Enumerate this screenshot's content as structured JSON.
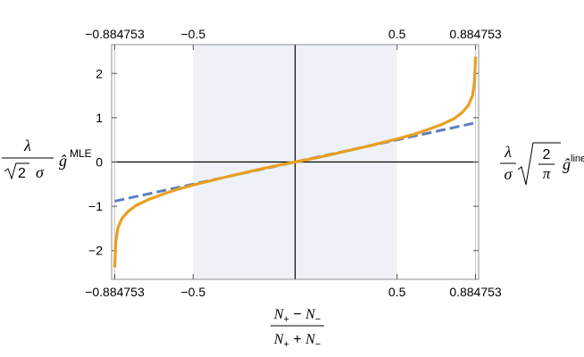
{
  "chart_data": {
    "type": "line",
    "x": [
      -0.884753,
      -0.88,
      -0.87,
      -0.85,
      -0.82,
      -0.78,
      -0.72,
      -0.65,
      -0.58,
      -0.5,
      -0.42,
      -0.34,
      -0.26,
      -0.18,
      -0.1,
      0,
      0.1,
      0.18,
      0.26,
      0.34,
      0.42,
      0.5,
      0.58,
      0.65,
      0.72,
      0.78,
      0.82,
      0.85,
      0.87,
      0.88,
      0.884753
    ],
    "series": [
      {
        "key": "mle",
        "style": "solid",
        "color": "#E8A020",
        "values": [
          -2.38,
          -1.82,
          -1.5,
          -1.28,
          -1.12,
          -0.98,
          -0.85,
          -0.73,
          -0.62,
          -0.52,
          -0.43,
          -0.34,
          -0.255,
          -0.17,
          -0.09,
          0,
          0.09,
          0.17,
          0.255,
          0.34,
          0.43,
          0.52,
          0.62,
          0.73,
          0.85,
          0.98,
          1.12,
          1.28,
          1.5,
          1.82,
          2.38
        ]
      },
      {
        "key": "linear",
        "style": "dashed",
        "color": "#5B7FBF",
        "values": [
          -0.884753,
          -0.88,
          -0.87,
          -0.85,
          -0.82,
          -0.78,
          -0.72,
          -0.65,
          -0.58,
          -0.5,
          -0.42,
          -0.34,
          -0.26,
          -0.18,
          -0.1,
          0,
          0.1,
          0.18,
          0.26,
          0.34,
          0.42,
          0.5,
          0.58,
          0.65,
          0.72,
          0.78,
          0.82,
          0.85,
          0.87,
          0.88,
          0.884753
        ]
      }
    ],
    "xlim": [
      -0.9,
      0.9
    ],
    "ylim": [
      -2.65,
      2.65
    ],
    "xticks": [
      -0.884753,
      -0.5,
      0.5,
      0.884753
    ],
    "xtick_labels": [
      "−0.884753",
      "−0.5",
      "0.5",
      "0.884753"
    ],
    "yticks": [
      -2,
      -1,
      0,
      1,
      2
    ],
    "ytick_labels": [
      "−2",
      "−1",
      "0",
      "1",
      "2"
    ],
    "shaded_region": [
      -0.5,
      0.5
    ],
    "shade_color": "#EEF2F8",
    "grid_color": "#C8C8C8",
    "frame_color": "#909090",
    "left_label": {
      "numerator": "λ",
      "sqrt_arg": "2",
      "sigma": "σ",
      "g": "ĝ",
      "superscript": "MLE"
    },
    "right_label": {
      "lambda": "λ",
      "sigma": "σ",
      "frac_num": "2",
      "frac_den": "π",
      "g": "ĝ",
      "superscript": "linear"
    },
    "xlabel": {
      "numerator_a": "N",
      "numerator_a_sub": "+",
      "numerator_op": " − ",
      "numerator_b": "N",
      "numerator_b_sub": "−",
      "denominator_a": "N",
      "denominator_a_sub": "+",
      "denominator_op": " + ",
      "denominator_b": "N",
      "denominator_b_sub": "−"
    }
  }
}
